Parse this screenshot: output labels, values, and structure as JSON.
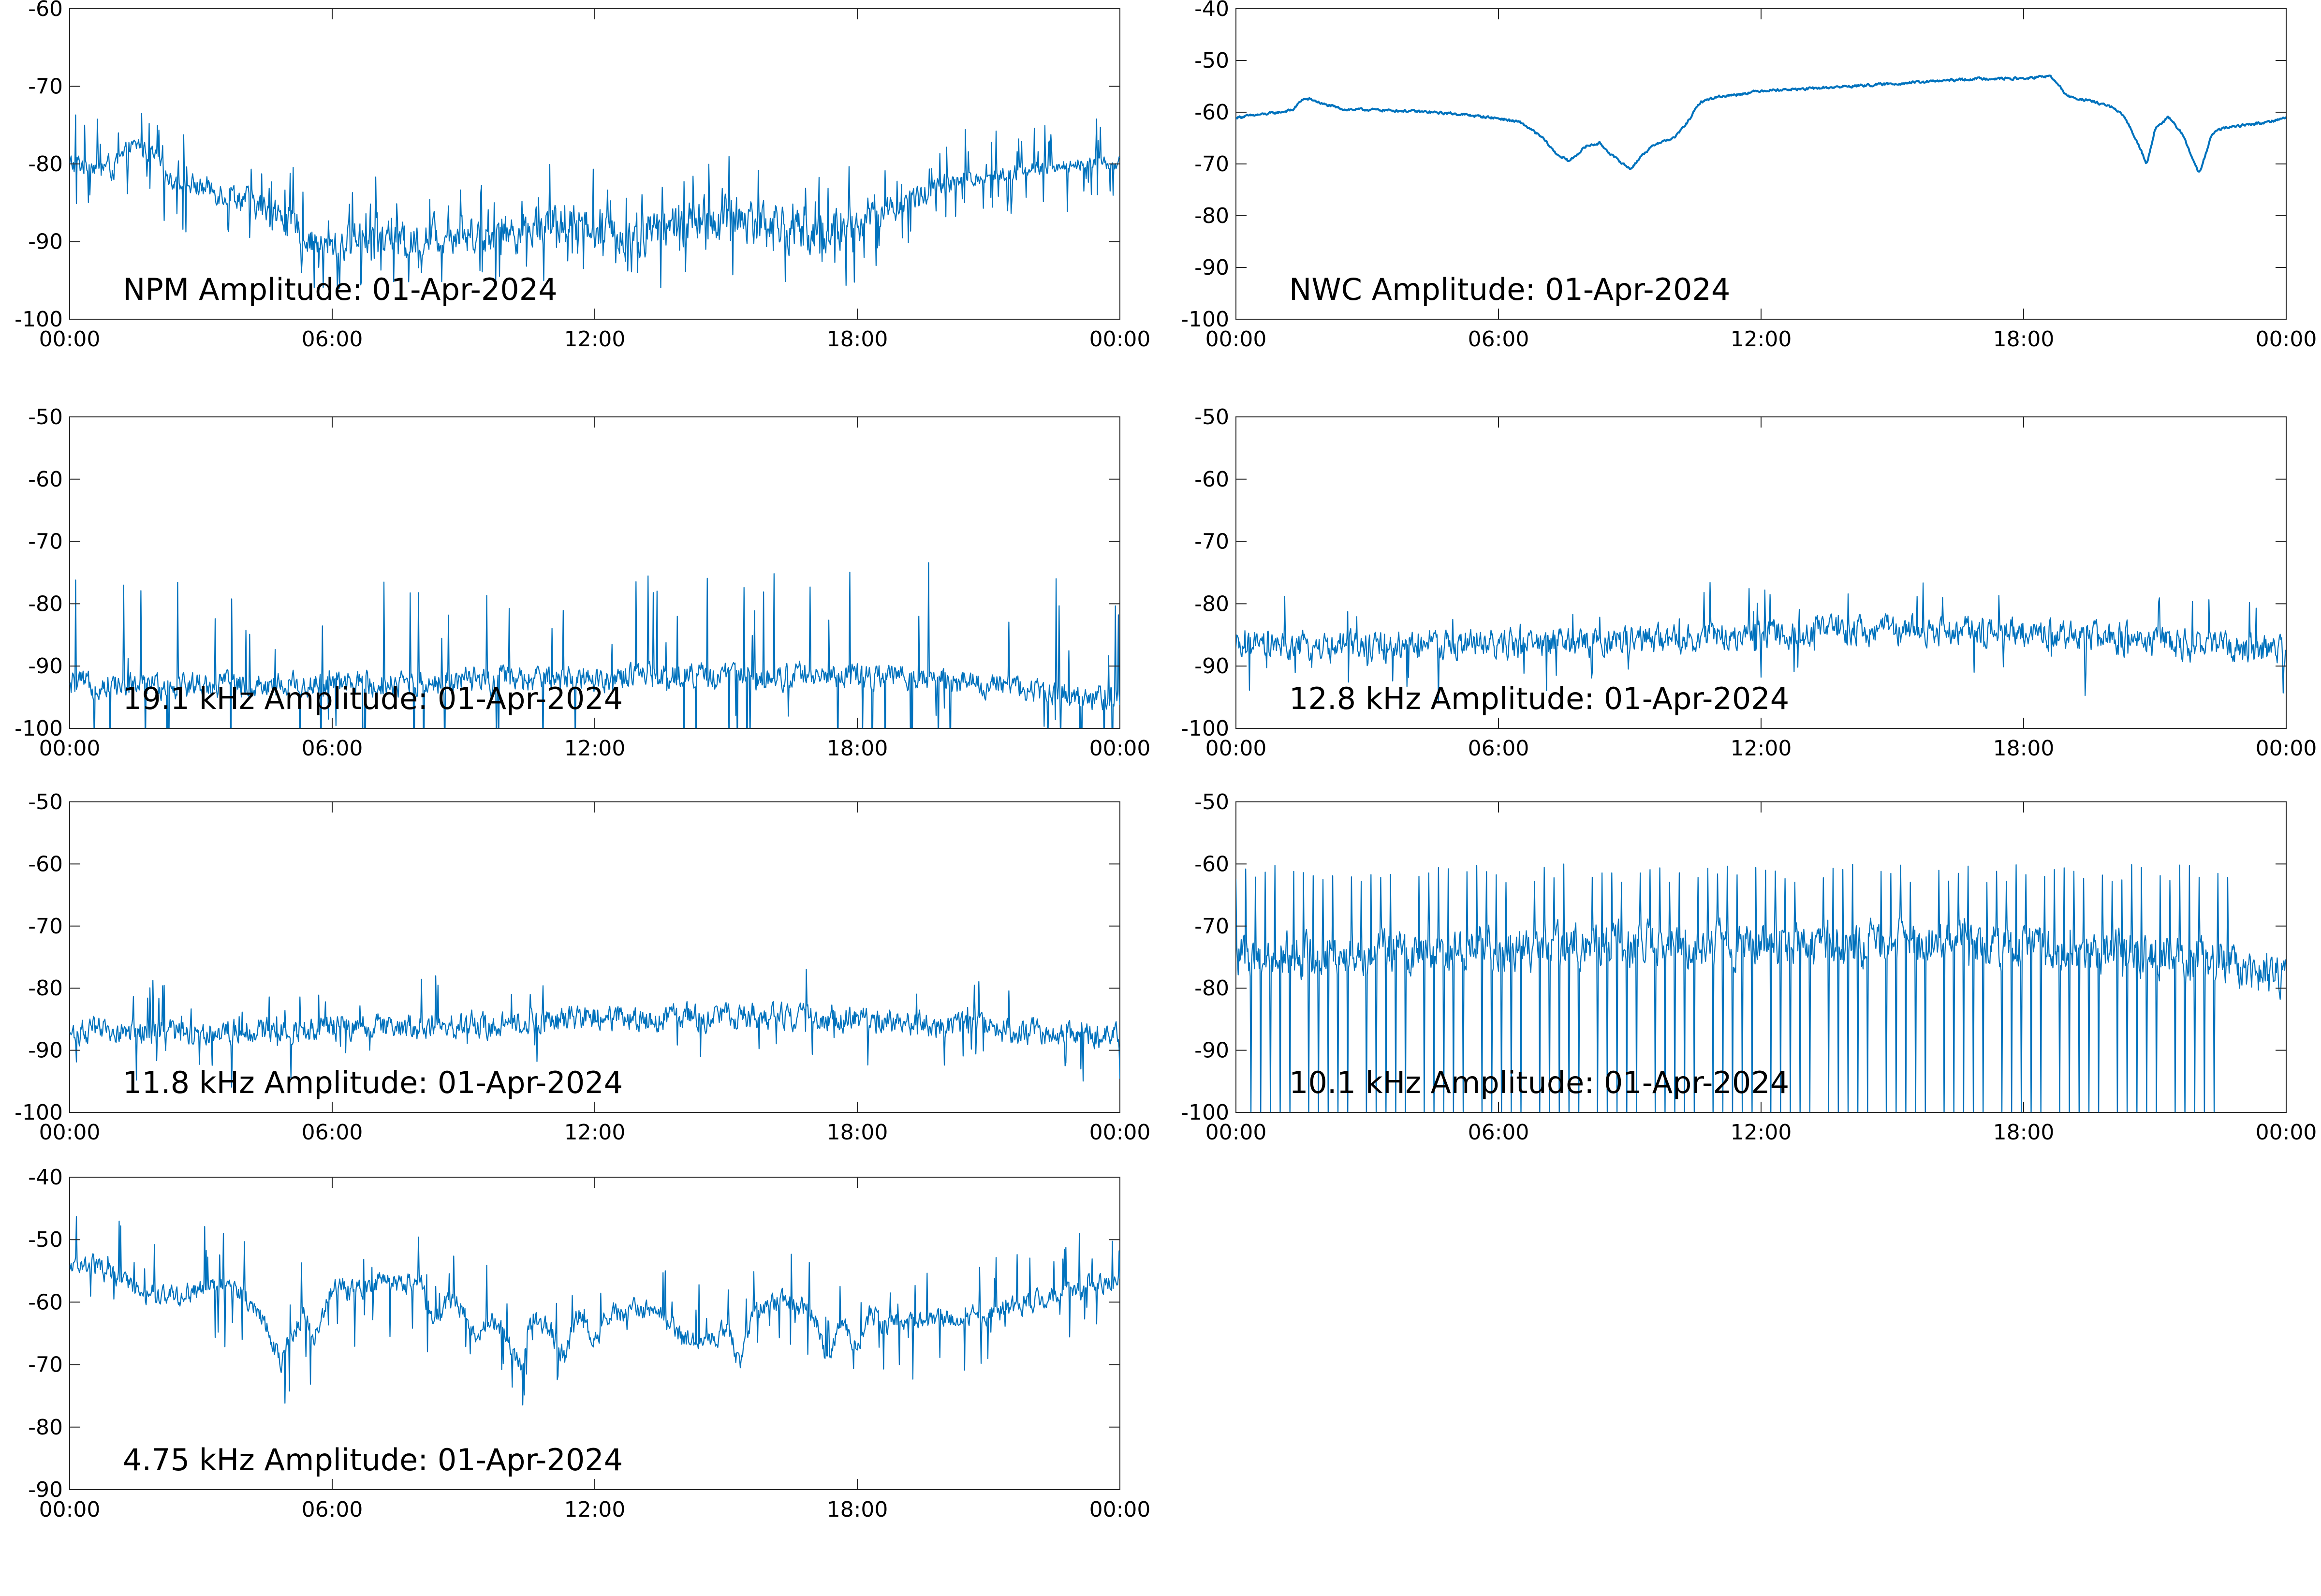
{
  "chart_data": [
    {
      "type": "line",
      "title": "NPM Amplitude: 01-Apr-2024",
      "xlabel": "",
      "ylabel": "",
      "xlim_hours": [
        0,
        24
      ],
      "x_tick_labels": [
        "00:00",
        "06:00",
        "12:00",
        "18:00",
        "00:00"
      ],
      "ylim": [
        -100,
        -60
      ],
      "y_tick_labels": [
        "-60",
        "-70",
        "-80",
        "-90",
        "-100"
      ],
      "color": "#0072BD",
      "series": [
        {
          "x_hours": [
            0,
            0.5,
            1,
            1.4,
            1.6,
            1.9,
            2.3,
            3,
            3.8,
            4.5,
            5.2,
            5.7,
            6.2,
            6.6,
            7,
            7.5,
            8,
            8.5,
            9,
            9.5,
            10,
            10.5,
            11,
            11.5,
            12,
            12.5,
            13,
            13.5,
            14,
            14.5,
            15,
            15.5,
            16,
            16.5,
            17,
            17.3,
            17.6,
            18,
            18.5,
            19,
            19.5,
            20,
            20.5,
            21,
            21.5,
            22,
            22.5,
            23,
            23.5,
            24
          ],
          "mean": [
            -80,
            -80,
            -80.5,
            -78,
            -77.5,
            -79,
            -82,
            -83,
            -84,
            -86,
            -88,
            -91,
            -90.5,
            -89,
            -89.5,
            -90,
            -90,
            -89,
            -88.5,
            -89,
            -89,
            -88,
            -88,
            -87.5,
            -88,
            -89.5,
            -89,
            -88,
            -88,
            -87,
            -87,
            -87,
            -87.5,
            -88.5,
            -89,
            -88,
            -88.5,
            -88,
            -86,
            -85,
            -84,
            -83,
            -82,
            -81.5,
            -81,
            -80.5,
            -80.5,
            -80,
            -80,
            -80
          ],
          "spread": [
            2.5,
            2.5,
            2.5,
            2,
            2,
            2,
            2,
            2.5,
            3,
            3,
            3.5,
            3.5,
            3.5,
            3.5,
            3.5,
            3.5,
            4,
            4,
            4,
            4,
            4.5,
            4.5,
            4.5,
            4.5,
            4.5,
            4.5,
            5,
            5,
            5,
            5,
            5,
            5,
            4.5,
            4.5,
            4.5,
            4.5,
            4.5,
            4,
            3.5,
            3,
            3,
            2.5,
            2,
            2,
            2,
            1.5,
            1.5,
            1.5,
            1.5,
            1.5
          ],
          "spike_rate": 0.15,
          "spike_depth": 4,
          "density": 1400
        }
      ]
    },
    {
      "type": "line",
      "title": "NWC Amplitude: 01-Apr-2024",
      "xlabel": "",
      "ylabel": "",
      "xlim_hours": [
        0,
        24
      ],
      "x_tick_labels": [
        "00:00",
        "06:00",
        "12:00",
        "18:00",
        "00:00"
      ],
      "ylim": [
        -100,
        -40
      ],
      "y_tick_labels": [
        "-40",
        "-50",
        "-60",
        "-70",
        "-80",
        "-90",
        "-100"
      ],
      "color": "#0072BD",
      "series": [
        {
          "x_hours": [
            0,
            0.5,
            1,
            1.3,
            1.5,
            1.7,
            2,
            2.5,
            3,
            4,
            5,
            6,
            6.5,
            7,
            7.3,
            7.6,
            7.8,
            8,
            8.3,
            8.6,
            9,
            9.3,
            9.6,
            10,
            10.3,
            10.6,
            11,
            11.5,
            12,
            13,
            14,
            15,
            16,
            17,
            18,
            18.6,
            18.9,
            19,
            19.3,
            19.6,
            20,
            20.3,
            20.6,
            20.8,
            21,
            21.3,
            21.6,
            22,
            22.3,
            22.6,
            23,
            23.5,
            24
          ],
          "mean": [
            -61,
            -60.5,
            -60,
            -59.5,
            -57.5,
            -57.5,
            -58.5,
            -59.5,
            -59.5,
            -59.8,
            -60.3,
            -61.2,
            -62,
            -65,
            -68,
            -69.5,
            -68,
            -66.5,
            -66,
            -68.5,
            -71,
            -68,
            -66,
            -65,
            -62,
            -58,
            -57,
            -56.5,
            -55.8,
            -55.5,
            -55,
            -54.5,
            -54,
            -53.5,
            -53.5,
            -53,
            -56,
            -57,
            -57.5,
            -58,
            -59,
            -61,
            -66,
            -70,
            -63,
            -61,
            -64,
            -72,
            -64,
            -63,
            -62.5,
            -62,
            -61
          ],
          "spread": [
            0.4
          ],
          "spike_rate": 0.0,
          "spike_depth": 0,
          "density": 1400
        }
      ]
    },
    {
      "type": "line",
      "title": "19.1 kHz Amplitude: 01-Apr-2024",
      "xlabel": "",
      "ylabel": "",
      "xlim_hours": [
        0,
        24
      ],
      "x_tick_labels": [
        "00:00",
        "06:00",
        "12:00",
        "18:00",
        "00:00"
      ],
      "ylim": [
        -100,
        -50
      ],
      "y_tick_labels": [
        "-50",
        "-60",
        "-70",
        "-80",
        "-90",
        "-100"
      ],
      "color": "#0072BD",
      "series": [
        {
          "x_hours": [
            0,
            3,
            6,
            9,
            12,
            14,
            16,
            18,
            19,
            20,
            21,
            22,
            22.5,
            23,
            24
          ],
          "mean": [
            -93,
            -93,
            -93,
            -92.5,
            -92,
            -91.5,
            -91.5,
            -91.5,
            -92,
            -92.5,
            -93,
            -93.5,
            -94,
            -95,
            -95
          ],
          "spread": [
            3.5
          ],
          "spike_rate": 0.06,
          "spike_depth": 12,
          "density": 1400
        }
      ]
    },
    {
      "type": "line",
      "title": "12.8 kHz Amplitude: 01-Apr-2024",
      "xlabel": "",
      "ylabel": "",
      "xlim_hours": [
        0,
        24
      ],
      "x_tick_labels": [
        "00:00",
        "06:00",
        "12:00",
        "18:00",
        "00:00"
      ],
      "ylim": [
        -100,
        -50
      ],
      "y_tick_labels": [
        "-50",
        "-60",
        "-70",
        "-80",
        "-90",
        "-100"
      ],
      "color": "#0072BD",
      "series": [
        {
          "x_hours": [
            0,
            3,
            6,
            9,
            12,
            15,
            18,
            20,
            22,
            24
          ],
          "mean": [
            -87,
            -87,
            -86.5,
            -86,
            -85,
            -84,
            -84.5,
            -85.5,
            -86.5,
            -88
          ],
          "spread": [
            4
          ],
          "spike_rate": 0.05,
          "spike_depth": 5,
          "density": 1400
        }
      ]
    },
    {
      "type": "line",
      "title": "11.8 kHz Amplitude: 01-Apr-2024",
      "xlabel": "",
      "ylabel": "",
      "xlim_hours": [
        0,
        24
      ],
      "x_tick_labels": [
        "00:00",
        "06:00",
        "12:00",
        "18:00",
        "00:00"
      ],
      "ylim": [
        -100,
        -50
      ],
      "y_tick_labels": [
        "-50",
        "-60",
        "-70",
        "-80",
        "-90",
        "-100"
      ],
      "color": "#0072BD",
      "series": [
        {
          "x_hours": [
            0,
            3,
            6,
            9,
            12,
            15,
            18,
            20,
            22,
            24
          ],
          "mean": [
            -87,
            -87,
            -86.5,
            -86,
            -85,
            -84.5,
            -85,
            -86,
            -87,
            -88
          ],
          "spread": [
            3.5
          ],
          "spike_rate": 0.05,
          "spike_depth": 5,
          "density": 1400
        }
      ]
    },
    {
      "type": "line",
      "title": "10.1 kHz Amplitude: 01-Apr-2024",
      "xlabel": "",
      "ylabel": "",
      "xlim_hours": [
        0,
        24
      ],
      "x_tick_labels": [
        "00:00",
        "06:00",
        "12:00",
        "18:00",
        "00:00"
      ],
      "ylim": [
        -100,
        -50
      ],
      "y_tick_labels": [
        "-50",
        "-60",
        "-70",
        "-80",
        "-90",
        "-100"
      ],
      "color": "#0072BD",
      "series": [
        {
          "x_hours": [
            0,
            4,
            8,
            12,
            16,
            20,
            22.8,
            23.2,
            24
          ],
          "mean": [
            -75,
            -74,
            -73,
            -73,
            -73,
            -74,
            -76,
            -78,
            -77
          ],
          "spread": [
            6
          ],
          "burst_period_hours": 0.22,
          "burst_until_hours": 22.7,
          "burst_top": -63,
          "burst_bottom": -100,
          "spike_rate": 0.0,
          "spike_depth": 0,
          "density": 1400
        }
      ]
    },
    {
      "type": "line",
      "title": "4.75 kHz Amplitude: 01-Apr-2024",
      "xlabel": "",
      "ylabel": "",
      "xlim_hours": [
        0,
        24
      ],
      "x_tick_labels": [
        "00:00",
        "06:00",
        "12:00",
        "18:00",
        "00:00"
      ],
      "ylim": [
        -90,
        -40
      ],
      "y_tick_labels": [
        "-40",
        "-50",
        "-60",
        "-70",
        "-80",
        "-90"
      ],
      "color": "#0072BD",
      "series": [
        {
          "x_hours": [
            0,
            0.5,
            1,
            1.5,
            2,
            2.5,
            3,
            3.5,
            4,
            4.5,
            4.8,
            5,
            5.3,
            5.6,
            6,
            6.5,
            7,
            7.5,
            8,
            8.3,
            8.6,
            9,
            9.3,
            9.6,
            10,
            10.3,
            10.6,
            11,
            11.3,
            11.6,
            12,
            12.3,
            12.6,
            13,
            13.5,
            14,
            14.5,
            15,
            15.3,
            15.6,
            16,
            16.5,
            17,
            17.3,
            17.6,
            18,
            18.3,
            18.6,
            19,
            19.5,
            20,
            20.5,
            21,
            21.5,
            22,
            22.5,
            23,
            23.5,
            24
          ],
          "mean": [
            -54,
            -54,
            -56,
            -58,
            -59,
            -59,
            -58,
            -57,
            -59,
            -64,
            -70,
            -66,
            -62,
            -65,
            -58,
            -58,
            -57,
            -57,
            -57,
            -63,
            -60,
            -61,
            -66,
            -62,
            -66,
            -70,
            -62,
            -65,
            -69,
            -62,
            -66,
            -62,
            -62,
            -61,
            -62,
            -66,
            -67,
            -64,
            -70,
            -62,
            -60,
            -60,
            -62,
            -70,
            -62,
            -68,
            -61,
            -64,
            -63,
            -63,
            -63,
            -62,
            -62,
            -61,
            -60,
            -59,
            -58,
            -57,
            -57
          ],
          "spread": [
            2.8
          ],
          "spike_rate": 0.08,
          "spike_depth": 6,
          "density": 1400
        }
      ]
    }
  ]
}
